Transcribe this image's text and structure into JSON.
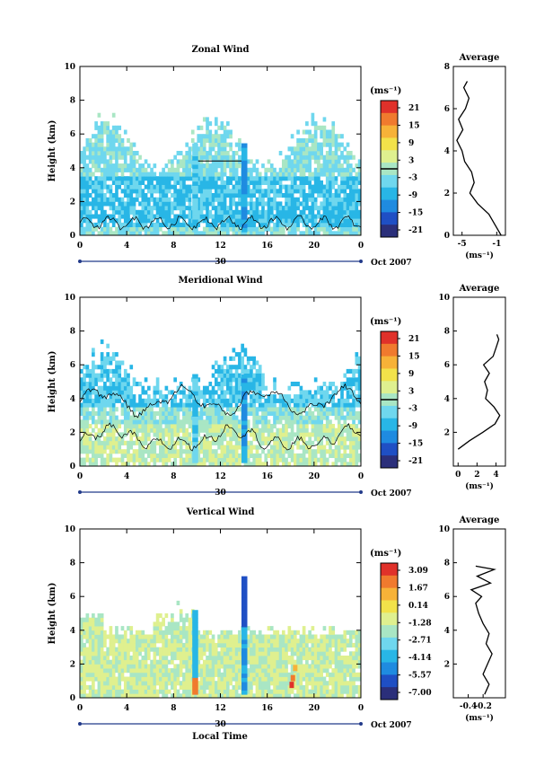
{
  "colors": {
    "scale": [
      "#2b2f7a",
      "#1f4fc4",
      "#1f8be0",
      "#28b6e6",
      "#6fd7ee",
      "#a9e6c4",
      "#dff08f",
      "#f2e24a",
      "#f7b238",
      "#f07a2e",
      "#e0312a"
    ]
  },
  "common": {
    "ytitle": "Height (km)",
    "ylim": [
      0,
      10
    ],
    "yticks": [
      "0",
      "2",
      "4",
      "6",
      "8",
      "10"
    ],
    "xlim": [
      0,
      24
    ],
    "xticks": [
      "0",
      "4",
      "8",
      "12",
      "16",
      "20",
      "0"
    ],
    "date_tick": "30",
    "date_label": "Oct 2007",
    "unit": "(ms⁻¹)",
    "avg_title": "Average",
    "xtitle": "Local Time"
  },
  "chart_data": [
    {
      "type": "heatmap",
      "title": "Zonal Wind",
      "colorbar_ticks": [
        "21",
        "15",
        "9",
        "3",
        "-3",
        "-9",
        "-15",
        "-21"
      ],
      "contour_at": "0",
      "profile": {
        "type": "line",
        "title": "Average",
        "xlabel": "(ms⁻¹)",
        "xlim": [
          -6,
          0
        ],
        "xticks": [
          "-5",
          "-1"
        ],
        "ylim": [
          0,
          8
        ],
        "yticks": [
          "0",
          "2",
          "4",
          "6",
          "8"
        ],
        "heights": [
          0.0,
          0.5,
          1.0,
          1.5,
          2.0,
          2.5,
          3.0,
          3.5,
          4.0,
          4.5,
          5.0,
          5.5,
          6.0,
          6.5,
          7.0,
          7.3
        ],
        "values": [
          -0.5,
          -1.2,
          -1.9,
          -3.2,
          -4.1,
          -3.6,
          -3.9,
          -4.7,
          -5.0,
          -5.6,
          -4.9,
          -5.4,
          -4.6,
          -4.2,
          -4.8,
          -4.4
        ]
      }
    },
    {
      "type": "heatmap",
      "title": "Meridional Wind",
      "colorbar_ticks": [
        "21",
        "15",
        "9",
        "3",
        "-3",
        "-9",
        "-15",
        "-21"
      ],
      "contour_at": "0",
      "profile": {
        "type": "line",
        "title": "Average",
        "xlabel": "(ms⁻¹)",
        "xlim": [
          -0.5,
          5
        ],
        "xticks": [
          "0",
          "2",
          "4"
        ],
        "ylim": [
          0,
          10
        ],
        "yticks": [
          "2",
          "4",
          "6",
          "8",
          "10"
        ],
        "heights": [
          1.0,
          1.5,
          2.0,
          2.5,
          3.0,
          3.5,
          4.0,
          4.5,
          5.0,
          5.5,
          6.0,
          6.5,
          7.0,
          7.5,
          7.8
        ],
        "values": [
          0.0,
          1.2,
          2.6,
          3.9,
          4.4,
          3.8,
          2.9,
          3.1,
          2.8,
          3.3,
          2.7,
          3.7,
          4.0,
          4.3,
          4.1
        ]
      }
    },
    {
      "type": "heatmap",
      "title": "Vertical Wind",
      "colorbar_ticks": [
        "3.09",
        "1.67",
        "0.14",
        "-1.28",
        "-2.71",
        "-4.14",
        "-5.57",
        "-7.00"
      ],
      "profile": {
        "type": "line",
        "title": "Average",
        "xlabel": "(ms⁻¹)",
        "xlim": [
          -0.6,
          0.1
        ],
        "xticks": [
          "-0.4",
          "-0.2"
        ],
        "ylim": [
          0,
          10
        ],
        "yticks": [
          "2",
          "4",
          "6",
          "8",
          "10"
        ],
        "heights": [
          0.2,
          0.8,
          1.4,
          2.0,
          2.6,
          3.2,
          3.8,
          4.4,
          5.0,
          5.6,
          6.0,
          6.4,
          6.8,
          7.2,
          7.6,
          7.8
        ],
        "values": [
          -0.18,
          -0.12,
          -0.2,
          -0.14,
          -0.08,
          -0.16,
          -0.12,
          -0.2,
          -0.26,
          -0.3,
          -0.22,
          -0.36,
          -0.1,
          -0.28,
          -0.05,
          -0.3
        ]
      }
    }
  ]
}
